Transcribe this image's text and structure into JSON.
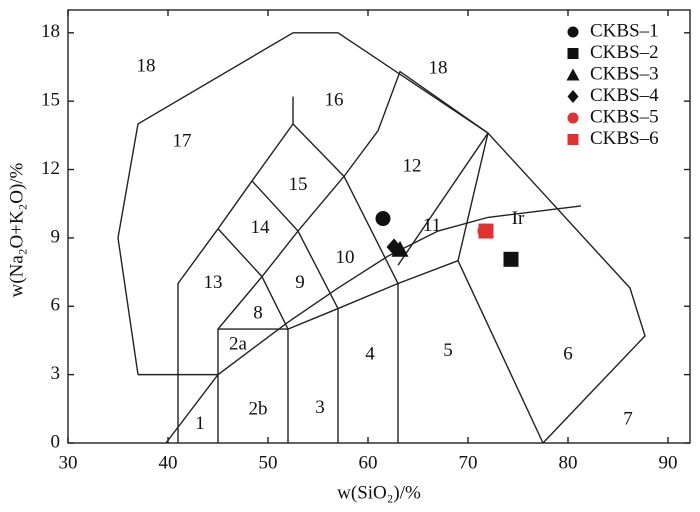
{
  "chart_data": {
    "type": "scatter",
    "x_label": "w(SiO₂)/%",
    "y_label": "w(Na₂O+K₂O)/%",
    "xlim": [
      30,
      92.2
    ],
    "ylim": [
      0,
      19
    ],
    "xticks": [
      30,
      40,
      50,
      60,
      70,
      80,
      90
    ],
    "yticks": [
      0,
      3,
      6,
      9,
      12,
      15,
      18
    ],
    "legend_position": "upper right",
    "series": [
      {
        "name": "CKBS–1",
        "color": "#111111",
        "marker": "circle",
        "x": [
          61.5
        ],
        "values": [
          9.85
        ]
      },
      {
        "name": "CKBS–2",
        "color": "#111111",
        "marker": "square",
        "x": [
          74.3
        ],
        "values": [
          8.06
        ]
      },
      {
        "name": "CKBS–3",
        "color": "#111111",
        "marker": "triangle",
        "x": [
          63.2
        ],
        "values": [
          8.5
        ]
      },
      {
        "name": "CKBS–4",
        "color": "#111111",
        "marker": "diamond",
        "x": [
          62.6
        ],
        "values": [
          8.6
        ]
      },
      {
        "name": "CKBS–5",
        "color": "#e03030",
        "marker": "circle",
        "x": [
          71.7
        ],
        "values": [
          9.3
        ]
      },
      {
        "name": "CKBS–6",
        "color": "#e03030",
        "marker": "square",
        "x": [
          71.8
        ],
        "values": [
          9.3
        ]
      }
    ],
    "field_labels": [
      "18",
      "18",
      "16",
      "17",
      "15",
      "12",
      "14",
      "11",
      "Ir",
      "10",
      "9",
      "13",
      "8",
      "2a",
      "4",
      "5",
      "6",
      "2b",
      "3",
      "1",
      "7"
    ]
  }
}
